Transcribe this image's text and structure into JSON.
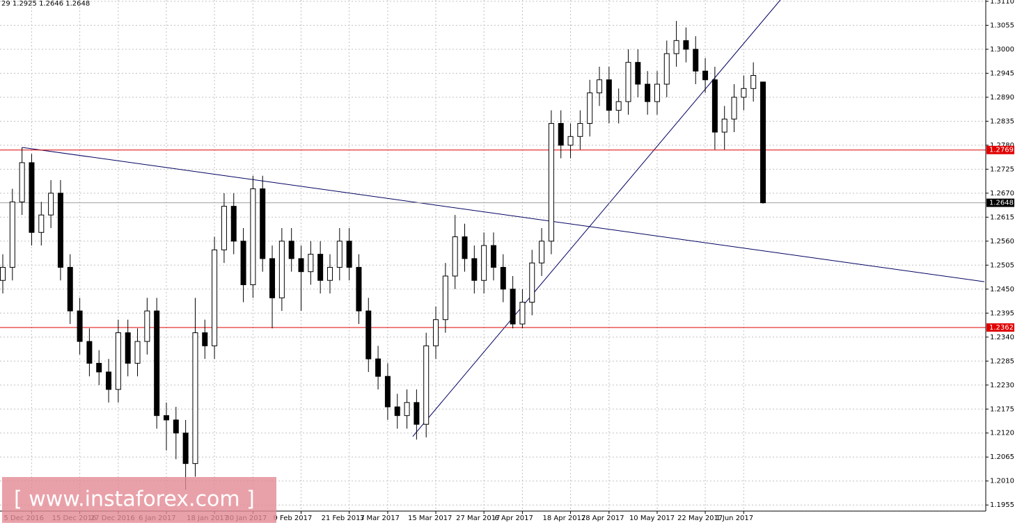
{
  "chart_data": {
    "type": "candlestick",
    "header": "29 1.2925 1.2646 1.2648",
    "watermark": "[ www.instaforex.com ]",
    "up_color": "#ffffff",
    "down_color": "#000000",
    "grid": true,
    "categories": [
      null,
      null,
      null,
      "5 Dec 2016",
      null,
      null,
      null,
      null,
      "15 Dec 2016",
      null,
      null,
      null,
      "27 Dec 2016",
      null,
      null,
      null,
      null,
      "6 Jan 2017",
      null,
      null,
      null,
      null,
      "18 Jan 2017",
      null,
      null,
      null,
      "30 Jan 2017",
      null,
      null,
      null,
      null,
      "9 Feb 2017",
      null,
      null,
      null,
      null,
      "21 Feb 2017",
      null,
      null,
      null,
      "3 Mar 2017",
      null,
      null,
      null,
      null,
      "15 Mar 2017",
      null,
      null,
      null,
      null,
      "27 Mar 2017",
      null,
      null,
      null,
      "6 Apr 2017",
      null,
      null,
      null,
      null,
      "18 Apr 2017",
      null,
      null,
      null,
      "28 Apr 2017",
      null,
      null,
      null,
      null,
      "10 May 2017",
      null,
      null,
      null,
      null,
      "22 May 2017",
      null,
      null,
      null,
      "1 Jun 2017",
      null,
      null
    ],
    "open": [
      1.247,
      1.25,
      1.265,
      1.274,
      1.258,
      1.262,
      1.267,
      1.25,
      1.24,
      1.233,
      1.228,
      1.226,
      1.222,
      1.235,
      1.228,
      1.233,
      1.24,
      1.216,
      1.215,
      1.212,
      1.205,
      1.235,
      1.232,
      1.254,
      1.264,
      1.256,
      1.246,
      1.268,
      1.252,
      1.243,
      1.256,
      1.252,
      1.249,
      1.253,
      1.247,
      1.25,
      1.256,
      1.25,
      1.24,
      1.229,
      1.225,
      1.218,
      1.216,
      1.219,
      1.214,
      1.232,
      1.238,
      1.248,
      1.257,
      1.252,
      1.247,
      1.255,
      1.25,
      1.245,
      1.237,
      1.242,
      1.251,
      1.256,
      1.283,
      1.278,
      1.28,
      1.283,
      1.29,
      1.293,
      1.286,
      1.288,
      1.297,
      1.292,
      1.288,
      1.292,
      1.299,
      1.302,
      1.3,
      1.295,
      1.293,
      1.281,
      1.284,
      1.289,
      1.291,
      1.2925
    ],
    "high": [
      1.253,
      1.268,
      1.2775,
      1.276,
      1.265,
      1.27,
      1.27,
      1.253,
      1.243,
      1.236,
      1.231,
      1.229,
      1.238,
      1.238,
      1.236,
      1.243,
      1.243,
      1.219,
      1.218,
      1.215,
      1.243,
      1.238,
      1.257,
      1.267,
      1.267,
      1.259,
      1.271,
      1.271,
      1.255,
      1.259,
      1.259,
      1.255,
      1.256,
      1.256,
      1.253,
      1.259,
      1.259,
      1.253,
      1.243,
      1.232,
      1.228,
      1.221,
      1.222,
      1.222,
      1.235,
      1.241,
      1.251,
      1.262,
      1.26,
      1.255,
      1.258,
      1.258,
      1.253,
      1.248,
      1.245,
      1.254,
      1.259,
      1.286,
      1.286,
      1.283,
      1.286,
      1.293,
      1.296,
      1.296,
      1.291,
      1.3,
      1.3,
      1.295,
      1.295,
      1.302,
      1.3065,
      1.305,
      1.303,
      1.298,
      1.296,
      1.287,
      1.292,
      1.294,
      1.297,
      1.2925
    ],
    "low": [
      1.244,
      1.247,
      1.262,
      1.255,
      1.255,
      1.259,
      1.247,
      1.237,
      1.23,
      1.225,
      1.223,
      1.219,
      1.219,
      1.225,
      1.225,
      1.23,
      1.213,
      1.208,
      1.206,
      1.199,
      1.202,
      1.229,
      1.229,
      1.251,
      1.253,
      1.242,
      1.243,
      1.249,
      1.236,
      1.24,
      1.249,
      1.24,
      1.246,
      1.244,
      1.244,
      1.247,
      1.247,
      1.237,
      1.226,
      1.222,
      1.215,
      1.213,
      1.213,
      1.2105,
      1.211,
      1.229,
      1.235,
      1.245,
      1.249,
      1.244,
      1.244,
      1.247,
      1.242,
      1.236,
      1.236,
      1.239,
      1.248,
      1.253,
      1.275,
      1.275,
      1.277,
      1.28,
      1.287,
      1.283,
      1.283,
      1.285,
      1.289,
      1.285,
      1.285,
      1.289,
      1.296,
      1.297,
      1.292,
      1.29,
      1.277,
      1.277,
      1.281,
      1.286,
      1.288,
      1.2646
    ],
    "close": [
      1.25,
      1.265,
      1.274,
      1.258,
      1.262,
      1.267,
      1.25,
      1.24,
      1.233,
      1.228,
      1.226,
      1.222,
      1.235,
      1.228,
      1.233,
      1.24,
      1.216,
      1.215,
      1.212,
      1.205,
      1.235,
      1.232,
      1.254,
      1.264,
      1.256,
      1.246,
      1.268,
      1.252,
      1.243,
      1.256,
      1.252,
      1.249,
      1.253,
      1.247,
      1.25,
      1.256,
      1.25,
      1.24,
      1.229,
      1.225,
      1.218,
      1.216,
      1.219,
      1.214,
      1.232,
      1.238,
      1.248,
      1.257,
      1.252,
      1.247,
      1.255,
      1.25,
      1.245,
      1.237,
      1.242,
      1.251,
      1.256,
      1.283,
      1.278,
      1.28,
      1.283,
      1.29,
      1.293,
      1.286,
      1.288,
      1.297,
      1.292,
      1.288,
      1.292,
      1.299,
      1.302,
      1.3,
      1.295,
      1.293,
      1.281,
      1.284,
      1.289,
      1.291,
      1.294,
      1.2648
    ],
    "ylim": [
      1.1941,
      1.3113
    ],
    "yticks": [
      {
        "value": 1.311,
        "label": "1.3110"
      },
      {
        "value": 1.3055,
        "label": "1.3055"
      },
      {
        "value": 1.3,
        "label": "1.3000"
      },
      {
        "value": 1.2945,
        "label": "1.2945"
      },
      {
        "value": 1.289,
        "label": "1.2890"
      },
      {
        "value": 1.2835,
        "label": "1.2835"
      },
      {
        "value": 1.278,
        "label": "1.2780"
      },
      {
        "value": 1.2725,
        "label": "1.2725"
      },
      {
        "value": 1.267,
        "label": "1.2670"
      },
      {
        "value": 1.2615,
        "label": "1.2615"
      },
      {
        "value": 1.256,
        "label": "1.2560"
      },
      {
        "value": 1.2505,
        "label": "1.2505"
      },
      {
        "value": 1.245,
        "label": "1.2450"
      },
      {
        "value": 1.2395,
        "label": "1.2395"
      },
      {
        "value": 1.234,
        "label": "1.2340"
      },
      {
        "value": 1.2285,
        "label": "1.2285"
      },
      {
        "value": 1.223,
        "label": "1.2230"
      },
      {
        "value": 1.2175,
        "label": "1.2175"
      },
      {
        "value": 1.212,
        "label": "1.2120"
      },
      {
        "value": 1.2065,
        "label": "1.2065"
      },
      {
        "value": 1.201,
        "label": "1.2010"
      },
      {
        "value": 1.1955,
        "label": "1.1955"
      }
    ],
    "levels": [
      {
        "value": 1.2769,
        "color": "#e00000"
      },
      {
        "value": 1.2362,
        "color": "#e00000"
      },
      {
        "value": 1.2648,
        "color": "#000000"
      }
    ],
    "trendlines": [
      {
        "color": "#000060",
        "x": [
          2,
          102
        ],
        "values": [
          1.2775,
          1.2467
        ]
      },
      {
        "color": "#000060",
        "x": [
          42.6,
          80.8
        ],
        "values": [
          1.2112,
          1.3113
        ]
      }
    ]
  }
}
